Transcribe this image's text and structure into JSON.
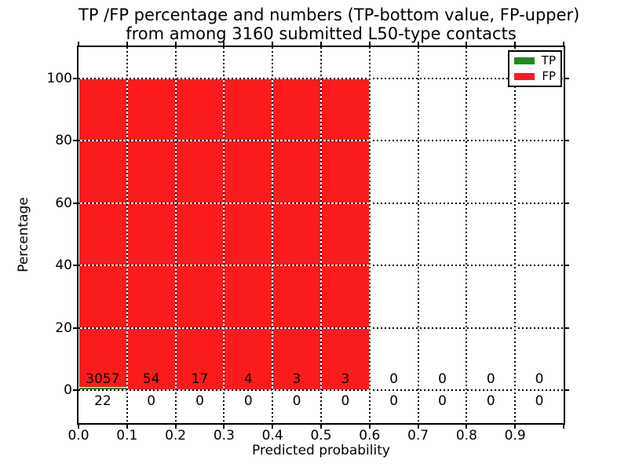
{
  "title": {
    "line1": "TP /FP percentage and numbers (TP-bottom value, FP-upper)",
    "line2": "from among 3160 submitted L50-type contacts"
  },
  "axes": {
    "xlabel": "Predicted probability",
    "ylabel": "Percentage"
  },
  "legend": [
    {
      "label": "TP",
      "color": "#1e8c1e"
    },
    {
      "label": "FP",
      "color": "#fa1c1c"
    }
  ],
  "chart_data": {
    "type": "bar",
    "stacked": true,
    "title": "TP /FP percentage and numbers (TP-bottom value, FP-upper) from among 3160 submitted L50-type contacts",
    "xlabel": "Predicted probability",
    "ylabel": "Percentage",
    "total_submitted_contacts": 3160,
    "bin_width": 0.1,
    "categories": [
      "0.0",
      "0.1",
      "0.2",
      "0.3",
      "0.4",
      "0.5",
      "0.6",
      "0.7",
      "0.8",
      "0.9"
    ],
    "xticks": [
      "0.0",
      "0.1",
      "0.2",
      "0.3",
      "0.4",
      "0.5",
      "0.6",
      "0.7",
      "0.8",
      "0.9"
    ],
    "yticks": [
      0,
      20,
      40,
      60,
      80,
      100
    ],
    "xlim": [
      0.0,
      1.0
    ],
    "ylim": [
      -10.6,
      110
    ],
    "grid": true,
    "grid_linestyle": "dotted",
    "legend_position": "upper right",
    "series": [
      {
        "name": "TP",
        "color": "#1e8c1e",
        "counts": [
          22,
          0,
          0,
          0,
          0,
          0,
          0,
          0,
          0,
          0
        ],
        "percentages": [
          0.71,
          0,
          0,
          0,
          0,
          0,
          0,
          0,
          0,
          0
        ]
      },
      {
        "name": "FP",
        "color": "#fa1c1c",
        "counts": [
          3057,
          54,
          17,
          4,
          3,
          3,
          0,
          0,
          0,
          0
        ],
        "percentages": [
          99.29,
          100,
          100,
          100,
          100,
          100,
          0,
          0,
          0,
          0
        ]
      }
    ]
  }
}
